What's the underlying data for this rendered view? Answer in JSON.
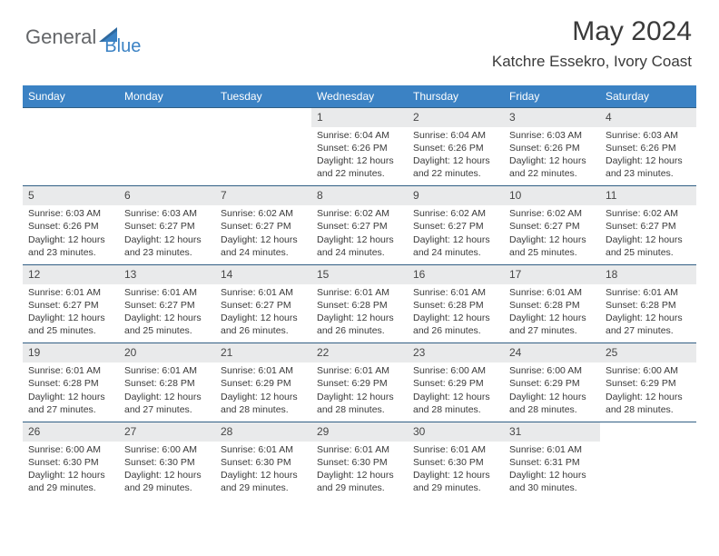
{
  "brand": {
    "name1": "General",
    "name2": "Blue"
  },
  "title": "May 2024",
  "location": "Katchre Essekro, Ivory Coast",
  "colors": {
    "header_bg": "#3b82c4",
    "header_text": "#ffffff",
    "daynum_bg": "#e9eaeb",
    "row_border": "#315f84",
    "text": "#3a3a3a",
    "brand_gray": "#636568",
    "brand_blue": "#3b82c4"
  },
  "day_headers": [
    "Sunday",
    "Monday",
    "Tuesday",
    "Wednesday",
    "Thursday",
    "Friday",
    "Saturday"
  ],
  "weeks": [
    [
      {
        "n": "",
        "lines": []
      },
      {
        "n": "",
        "lines": []
      },
      {
        "n": "",
        "lines": []
      },
      {
        "n": "1",
        "lines": [
          "Sunrise: 6:04 AM",
          "Sunset: 6:26 PM",
          "Daylight: 12 hours",
          "and 22 minutes."
        ]
      },
      {
        "n": "2",
        "lines": [
          "Sunrise: 6:04 AM",
          "Sunset: 6:26 PM",
          "Daylight: 12 hours",
          "and 22 minutes."
        ]
      },
      {
        "n": "3",
        "lines": [
          "Sunrise: 6:03 AM",
          "Sunset: 6:26 PM",
          "Daylight: 12 hours",
          "and 22 minutes."
        ]
      },
      {
        "n": "4",
        "lines": [
          "Sunrise: 6:03 AM",
          "Sunset: 6:26 PM",
          "Daylight: 12 hours",
          "and 23 minutes."
        ]
      }
    ],
    [
      {
        "n": "5",
        "lines": [
          "Sunrise: 6:03 AM",
          "Sunset: 6:26 PM",
          "Daylight: 12 hours",
          "and 23 minutes."
        ]
      },
      {
        "n": "6",
        "lines": [
          "Sunrise: 6:03 AM",
          "Sunset: 6:27 PM",
          "Daylight: 12 hours",
          "and 23 minutes."
        ]
      },
      {
        "n": "7",
        "lines": [
          "Sunrise: 6:02 AM",
          "Sunset: 6:27 PM",
          "Daylight: 12 hours",
          "and 24 minutes."
        ]
      },
      {
        "n": "8",
        "lines": [
          "Sunrise: 6:02 AM",
          "Sunset: 6:27 PM",
          "Daylight: 12 hours",
          "and 24 minutes."
        ]
      },
      {
        "n": "9",
        "lines": [
          "Sunrise: 6:02 AM",
          "Sunset: 6:27 PM",
          "Daylight: 12 hours",
          "and 24 minutes."
        ]
      },
      {
        "n": "10",
        "lines": [
          "Sunrise: 6:02 AM",
          "Sunset: 6:27 PM",
          "Daylight: 12 hours",
          "and 25 minutes."
        ]
      },
      {
        "n": "11",
        "lines": [
          "Sunrise: 6:02 AM",
          "Sunset: 6:27 PM",
          "Daylight: 12 hours",
          "and 25 minutes."
        ]
      }
    ],
    [
      {
        "n": "12",
        "lines": [
          "Sunrise: 6:01 AM",
          "Sunset: 6:27 PM",
          "Daylight: 12 hours",
          "and 25 minutes."
        ]
      },
      {
        "n": "13",
        "lines": [
          "Sunrise: 6:01 AM",
          "Sunset: 6:27 PM",
          "Daylight: 12 hours",
          "and 25 minutes."
        ]
      },
      {
        "n": "14",
        "lines": [
          "Sunrise: 6:01 AM",
          "Sunset: 6:27 PM",
          "Daylight: 12 hours",
          "and 26 minutes."
        ]
      },
      {
        "n": "15",
        "lines": [
          "Sunrise: 6:01 AM",
          "Sunset: 6:28 PM",
          "Daylight: 12 hours",
          "and 26 minutes."
        ]
      },
      {
        "n": "16",
        "lines": [
          "Sunrise: 6:01 AM",
          "Sunset: 6:28 PM",
          "Daylight: 12 hours",
          "and 26 minutes."
        ]
      },
      {
        "n": "17",
        "lines": [
          "Sunrise: 6:01 AM",
          "Sunset: 6:28 PM",
          "Daylight: 12 hours",
          "and 27 minutes."
        ]
      },
      {
        "n": "18",
        "lines": [
          "Sunrise: 6:01 AM",
          "Sunset: 6:28 PM",
          "Daylight: 12 hours",
          "and 27 minutes."
        ]
      }
    ],
    [
      {
        "n": "19",
        "lines": [
          "Sunrise: 6:01 AM",
          "Sunset: 6:28 PM",
          "Daylight: 12 hours",
          "and 27 minutes."
        ]
      },
      {
        "n": "20",
        "lines": [
          "Sunrise: 6:01 AM",
          "Sunset: 6:28 PM",
          "Daylight: 12 hours",
          "and 27 minutes."
        ]
      },
      {
        "n": "21",
        "lines": [
          "Sunrise: 6:01 AM",
          "Sunset: 6:29 PM",
          "Daylight: 12 hours",
          "and 28 minutes."
        ]
      },
      {
        "n": "22",
        "lines": [
          "Sunrise: 6:01 AM",
          "Sunset: 6:29 PM",
          "Daylight: 12 hours",
          "and 28 minutes."
        ]
      },
      {
        "n": "23",
        "lines": [
          "Sunrise: 6:00 AM",
          "Sunset: 6:29 PM",
          "Daylight: 12 hours",
          "and 28 minutes."
        ]
      },
      {
        "n": "24",
        "lines": [
          "Sunrise: 6:00 AM",
          "Sunset: 6:29 PM",
          "Daylight: 12 hours",
          "and 28 minutes."
        ]
      },
      {
        "n": "25",
        "lines": [
          "Sunrise: 6:00 AM",
          "Sunset: 6:29 PM",
          "Daylight: 12 hours",
          "and 28 minutes."
        ]
      }
    ],
    [
      {
        "n": "26",
        "lines": [
          "Sunrise: 6:00 AM",
          "Sunset: 6:30 PM",
          "Daylight: 12 hours",
          "and 29 minutes."
        ]
      },
      {
        "n": "27",
        "lines": [
          "Sunrise: 6:00 AM",
          "Sunset: 6:30 PM",
          "Daylight: 12 hours",
          "and 29 minutes."
        ]
      },
      {
        "n": "28",
        "lines": [
          "Sunrise: 6:01 AM",
          "Sunset: 6:30 PM",
          "Daylight: 12 hours",
          "and 29 minutes."
        ]
      },
      {
        "n": "29",
        "lines": [
          "Sunrise: 6:01 AM",
          "Sunset: 6:30 PM",
          "Daylight: 12 hours",
          "and 29 minutes."
        ]
      },
      {
        "n": "30",
        "lines": [
          "Sunrise: 6:01 AM",
          "Sunset: 6:30 PM",
          "Daylight: 12 hours",
          "and 29 minutes."
        ]
      },
      {
        "n": "31",
        "lines": [
          "Sunrise: 6:01 AM",
          "Sunset: 6:31 PM",
          "Daylight: 12 hours",
          "and 30 minutes."
        ]
      },
      {
        "n": "",
        "lines": []
      }
    ]
  ]
}
